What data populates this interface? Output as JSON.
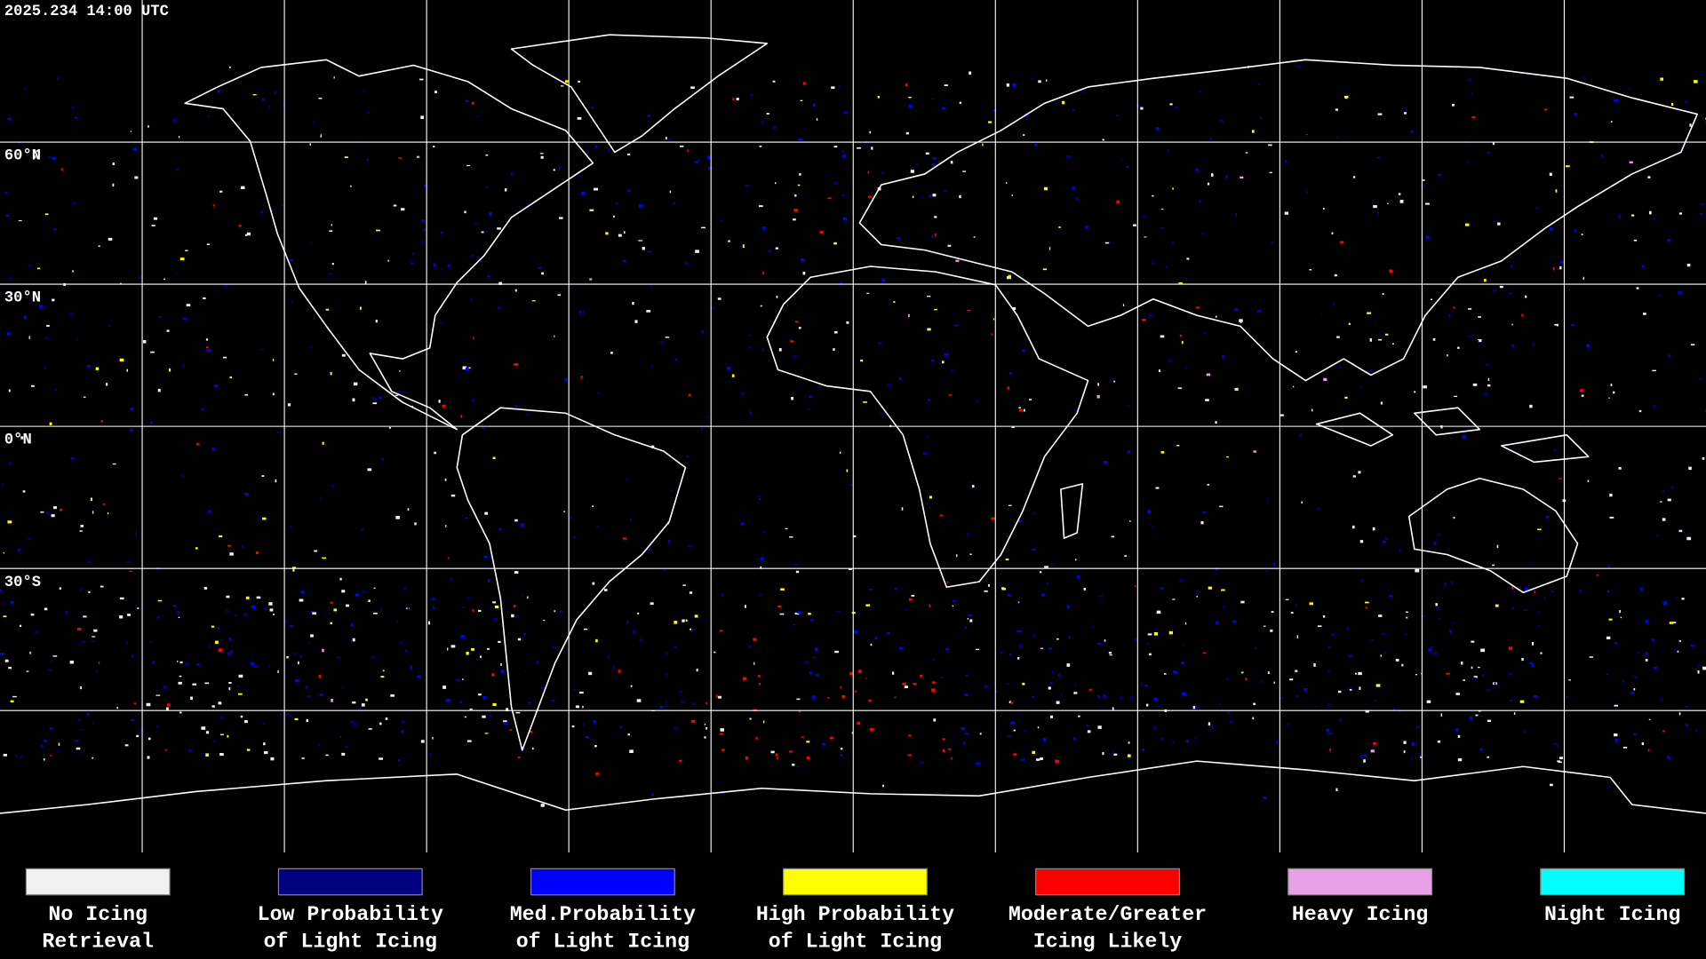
{
  "header": {
    "timestamp": "2025.234 14:00 UTC"
  },
  "map": {
    "latitude_labels": [
      "60°N",
      "30°N",
      "0°N",
      "30°S"
    ]
  },
  "legend": [
    {
      "color": "#f0f0f0",
      "label": [
        "No Icing",
        "Retrieval"
      ]
    },
    {
      "color": "#000080",
      "label": [
        "Low Probability",
        "of Light Icing"
      ]
    },
    {
      "color": "#0000ff",
      "label": [
        "Med.Probability",
        "of Light Icing"
      ]
    },
    {
      "color": "#ffff00",
      "label": [
        "High Probability",
        "of Light Icing"
      ]
    },
    {
      "color": "#ff0000",
      "label": [
        "Moderate/Greater",
        "Icing Likely"
      ]
    },
    {
      "color": "#e8a0e8",
      "label": [
        "Heavy Icing"
      ]
    },
    {
      "color": "#00ffff",
      "label": [
        "Night Icing"
      ]
    }
  ]
}
